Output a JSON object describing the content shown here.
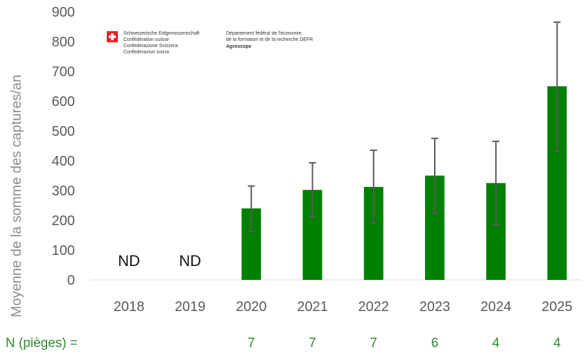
{
  "logo": {
    "left_lines": [
      "Schweizerische Eidgenossenschaft",
      "Confédération suisse",
      "Confederazione Svizzera",
      "Confederaziun svizra"
    ],
    "right_lines": [
      "Département fédéral de l'économie,",
      "de la formation et de la recherche DEFR"
    ],
    "right_bold": "Agroscope",
    "flag_color": "#e8202a"
  },
  "chart_data": {
    "type": "bar",
    "ylabel": "Moyenne   de la somme des captures/an",
    "categories": [
      "2018",
      "2019",
      "2020",
      "2021",
      "2022",
      "2023",
      "2024",
      "2025"
    ],
    "values": [
      null,
      null,
      240,
      302,
      312,
      350,
      325,
      650
    ],
    "error_upper": [
      null,
      null,
      315,
      393,
      435,
      475,
      465,
      865
    ],
    "error_lower": [
      null,
      null,
      162,
      212,
      190,
      225,
      185,
      432
    ],
    "missing_label": "ND",
    "ylim": [
      0,
      900
    ],
    "yticks": [
      0,
      100,
      200,
      300,
      400,
      500,
      600,
      700,
      800,
      900
    ],
    "grid": false,
    "bar_color": "#008000",
    "error_bar_color": "#595959",
    "n_traps": {
      "label": "N (pièges)  =",
      "values": [
        "",
        "",
        "7",
        "7",
        "7",
        "6",
        "4",
        "4"
      ],
      "color": "#2e8b2e"
    }
  }
}
